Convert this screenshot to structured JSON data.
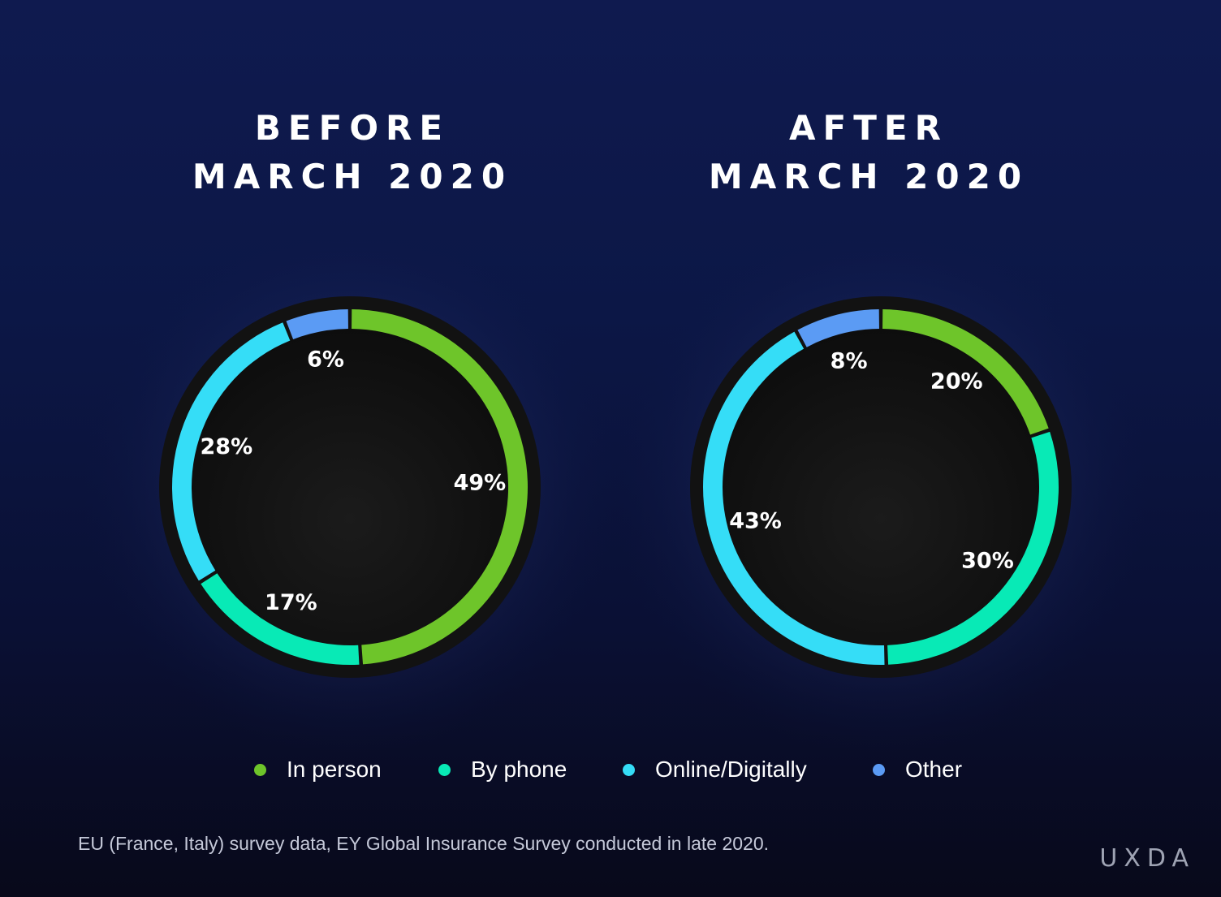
{
  "colors": {
    "in_person": "#6ec52a",
    "by_phone": "#08eab6",
    "online": "#35ddf7",
    "other": "#5b9bf4"
  },
  "chart_data": [
    {
      "type": "pie",
      "title_line1": "BEFORE",
      "title_line2": "MARCH 2020",
      "slices": [
        {
          "category": "In person",
          "value": 49,
          "label": "49%"
        },
        {
          "category": "By phone",
          "value": 17,
          "label": "17%"
        },
        {
          "category": "Online/Digitally",
          "value": 28,
          "label": "28%"
        },
        {
          "category": "Other",
          "value": 6,
          "label": "6%"
        }
      ]
    },
    {
      "type": "pie",
      "title_line1": "AFTER",
      "title_line2": "MARCH 2020",
      "slices": [
        {
          "category": "In person",
          "value": 20,
          "label": "20%"
        },
        {
          "category": "By phone",
          "value": 30,
          "label": "30%"
        },
        {
          "category": "Online/Digitally",
          "value": 43,
          "label": "43%"
        },
        {
          "category": "Other",
          "value": 8,
          "label": "8%"
        }
      ]
    }
  ],
  "legend": {
    "position": "bottom",
    "items": [
      {
        "label": "In person",
        "color": "#6ec52a"
      },
      {
        "label": "By phone",
        "color": "#08eab6"
      },
      {
        "label": "Online/Digitally",
        "color": "#35ddf7"
      },
      {
        "label": "Other",
        "color": "#5b9bf4"
      }
    ]
  },
  "footnote": "EU (France, Italy) survey data, EY Global Insurance Survey conducted in late 2020.",
  "brand": "UXDA"
}
